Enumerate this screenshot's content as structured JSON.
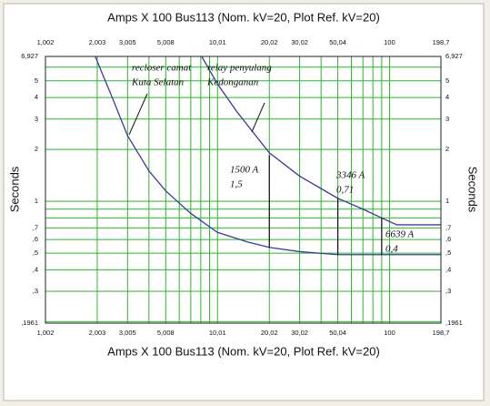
{
  "chart_data": {
    "type": "line",
    "title": "Amps  X  100   Bus113 (Nom. kV=20, Plot Ref. kV=20)",
    "xlabel": "Amps  X  100   Bus113 (Nom. kV=20, Plot Ref. kV=20)",
    "ylabel": "Seconds",
    "xscale": "log",
    "yscale": "log",
    "grid": true,
    "xlim": [
      1.002,
      198.7
    ],
    "ylim": [
      0.1961,
      6.927
    ],
    "xticks": [
      {
        "value": 1.002,
        "label": "1,002"
      },
      {
        "value": 2.003,
        "label": "2,003"
      },
      {
        "value": 3.005,
        "label": "3,005"
      },
      {
        "value": 5.008,
        "label": "5,008"
      },
      {
        "value": 10.01,
        "label": "10,01"
      },
      {
        "value": 20.02,
        "label": "20,02"
      },
      {
        "value": 30.02,
        "label": "30,02"
      },
      {
        "value": 50.04,
        "label": "50,04"
      },
      100,
      {
        "value": 198.7,
        "label": "198,7"
      }
    ],
    "yticks": [
      {
        "value": 6.927,
        "label": "6,927"
      },
      5,
      4,
      3,
      2,
      1,
      {
        "value": 0.7,
        "label": ",7"
      },
      {
        "value": 0.6,
        "label": ",6"
      },
      {
        "value": 0.5,
        "label": ",5"
      },
      {
        "value": 0.4,
        "label": ",4"
      },
      {
        "value": 0.3,
        "label": ",3"
      },
      {
        "value": 0.1961,
        "label": ",1961"
      }
    ],
    "xminorticks": [
      4,
      6,
      7,
      8,
      9,
      40,
      60,
      70,
      80,
      90
    ],
    "yminorticks": [
      0.2,
      0.8,
      0.9,
      6
    ],
    "grid_color": "#2fb52f",
    "series": [
      {
        "color": "#3b3b98",
        "x": [
          1.95,
          2.5,
          3.005,
          4,
          5,
          7,
          10,
          15,
          20,
          30,
          50,
          198.7
        ],
        "values": [
          6.927,
          3.8,
          2.4,
          1.5,
          1.15,
          0.85,
          0.66,
          0.58,
          0.54,
          0.51,
          0.49,
          0.49
        ]
      },
      {
        "color": "#3b3b98",
        "x": [
          8.1,
          10,
          13,
          20.02,
          30,
          50.04,
          70,
          90,
          110,
          198.7
        ],
        "values": [
          6.927,
          4.8,
          3.3,
          1.91,
          1.4,
          1.04,
          0.9,
          0.8,
          0.73,
          0.73
        ]
      }
    ],
    "annotations": [
      {
        "text": [
          "recloser camat",
          "Kuta Selatan"
        ]
      },
      {
        "text": [
          "relay penyulang",
          "Kedonganan"
        ]
      },
      {
        "text": [
          "1500 A",
          "1,5"
        ],
        "x": 20.02,
        "y": [
          1.85,
          0.54
        ]
      },
      {
        "text": [
          "3346 A",
          "0,71"
        ],
        "x": 50.04,
        "y": [
          1.04,
          0.49
        ]
      },
      {
        "text": [
          "6639 A",
          "0,4"
        ],
        "x": 90,
        "y": [
          0.8,
          0.49
        ]
      }
    ]
  }
}
